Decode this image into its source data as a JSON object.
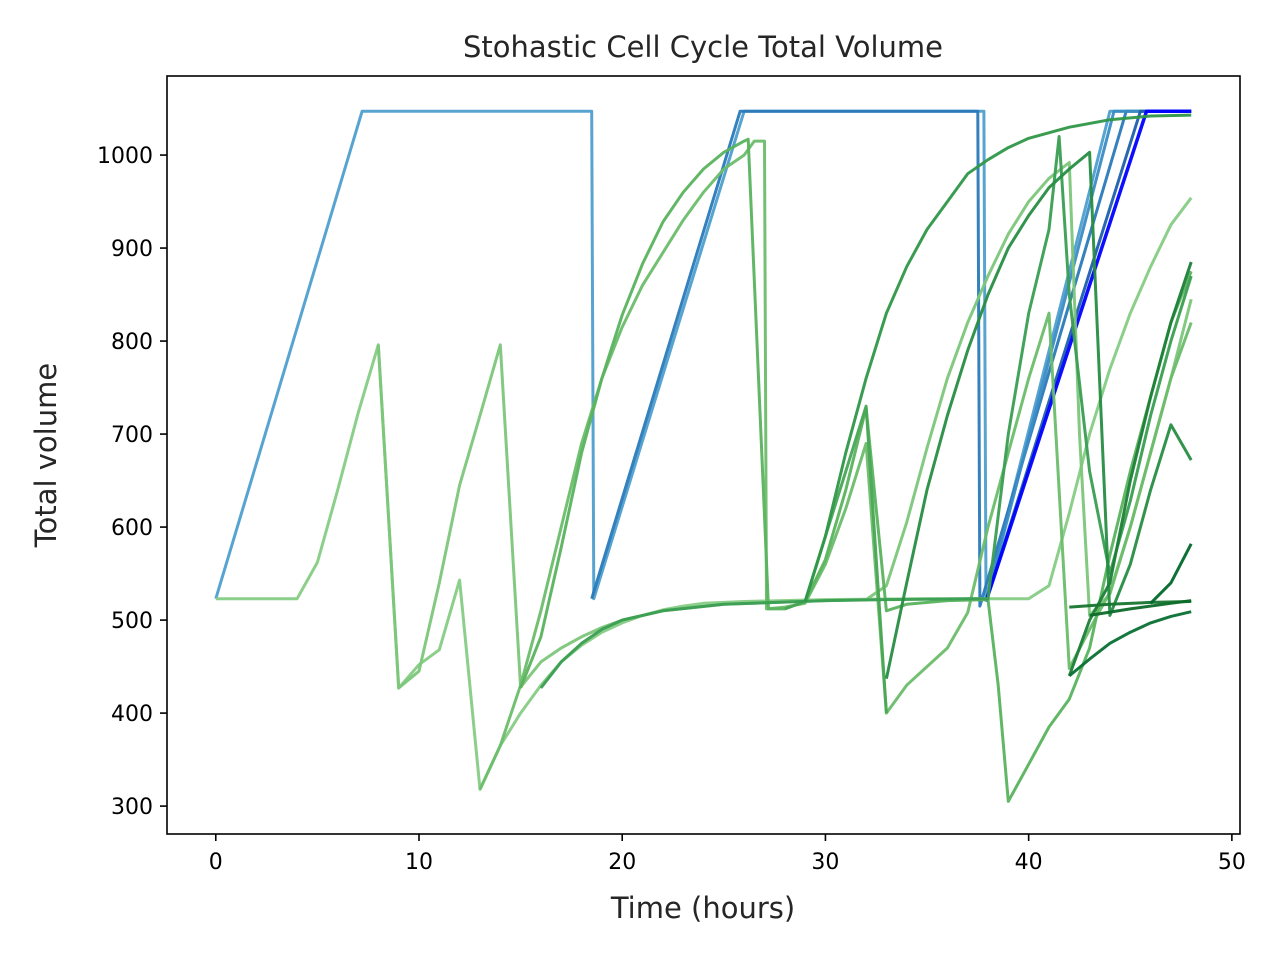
{
  "chart_data": {
    "type": "line",
    "title": "Stohastic Cell Cycle Total Volume",
    "xlabel": "Time (hours)",
    "ylabel": "Total volume",
    "xlim": [
      -2.4,
      50.4
    ],
    "ylim": [
      270,
      1085
    ],
    "xticks": [
      0,
      10,
      20,
      30,
      40,
      50
    ],
    "yticks": [
      300,
      400,
      500,
      600,
      700,
      800,
      900,
      1000
    ],
    "xtick_labels": [
      "0",
      "10",
      "20",
      "30",
      "40",
      "50"
    ],
    "ytick_labels": [
      "300",
      "400",
      "500",
      "600",
      "700",
      "800",
      "900",
      "1000"
    ],
    "grid": false,
    "legend": "none",
    "series": [
      {
        "color": "#4f9fcf",
        "width": 3,
        "points": [
          [
            0,
            523
          ],
          [
            7.2,
            1047
          ],
          [
            18.5,
            1047
          ],
          [
            18.6,
            523
          ],
          [
            26,
            1047
          ],
          [
            37.8,
            1047
          ],
          [
            37.9,
            523
          ],
          [
            44,
            1047
          ],
          [
            48,
            1047
          ]
        ]
      },
      {
        "color": "#2a7ab9",
        "width": 3,
        "points": [
          [
            18.5,
            523
          ],
          [
            25.8,
            1047
          ],
          [
            37.5,
            1047
          ],
          [
            37.6,
            515
          ],
          [
            44.8,
            1047
          ],
          [
            48,
            1047
          ]
        ]
      },
      {
        "color": "#3a8cc5",
        "width": 3,
        "points": [
          [
            37.9,
            520
          ],
          [
            44.2,
            1047
          ],
          [
            48,
            1047
          ]
        ]
      },
      {
        "color": "#1f5fad",
        "width": 3,
        "points": [
          [
            37.9,
            520
          ],
          [
            45.5,
            1047
          ],
          [
            48,
            1047
          ]
        ]
      },
      {
        "color": "#0000ff",
        "width": 3.5,
        "points": [
          [
            37.9,
            520
          ],
          [
            45.8,
            1047
          ],
          [
            48,
            1047
          ]
        ]
      },
      {
        "color": "#86cc84",
        "width": 3,
        "points": [
          [
            0,
            523
          ],
          [
            4,
            523
          ],
          [
            5,
            562
          ],
          [
            6,
            640
          ],
          [
            7,
            722
          ],
          [
            8,
            796
          ],
          [
            9,
            427
          ],
          [
            10,
            452
          ],
          [
            11,
            468
          ],
          [
            12,
            543
          ],
          [
            13,
            318
          ],
          [
            14,
            365
          ],
          [
            15,
            400
          ],
          [
            16,
            430
          ],
          [
            17,
            455
          ],
          [
            18,
            473
          ],
          [
            19,
            487
          ],
          [
            20,
            497
          ],
          [
            21,
            505
          ],
          [
            22,
            511
          ],
          [
            23,
            515
          ],
          [
            24,
            518
          ],
          [
            26,
            520
          ],
          [
            30,
            522
          ],
          [
            35,
            523
          ],
          [
            40,
            523
          ],
          [
            41,
            537
          ],
          [
            42,
            615
          ],
          [
            43,
            700
          ],
          [
            44,
            770
          ],
          [
            45,
            830
          ],
          [
            46,
            880
          ],
          [
            47,
            925
          ],
          [
            48,
            954
          ]
        ]
      },
      {
        "color": "#7cc67a",
        "width": 3,
        "points": [
          [
            8,
            796
          ],
          [
            9,
            427
          ],
          [
            10,
            445
          ],
          [
            11,
            540
          ],
          [
            12,
            645
          ],
          [
            13,
            720
          ],
          [
            14,
            796
          ],
          [
            15,
            428
          ],
          [
            16,
            455
          ],
          [
            17,
            470
          ],
          [
            18,
            482
          ],
          [
            19,
            492
          ],
          [
            20,
            500
          ],
          [
            22,
            510
          ],
          [
            25,
            517
          ],
          [
            30,
            521
          ],
          [
            32,
            522
          ],
          [
            33,
            537
          ],
          [
            34,
            605
          ],
          [
            35,
            685
          ],
          [
            36,
            760
          ],
          [
            37,
            820
          ],
          [
            38,
            870
          ],
          [
            39,
            915
          ],
          [
            40,
            950
          ],
          [
            41,
            975
          ],
          [
            42,
            992
          ],
          [
            42.5,
            700
          ],
          [
            43,
            505
          ],
          [
            44,
            528
          ],
          [
            45,
            600
          ],
          [
            46,
            680
          ],
          [
            47,
            760
          ],
          [
            48,
            845
          ]
        ]
      },
      {
        "color": "#6bbd6b",
        "width": 3,
        "points": [
          [
            13,
            318
          ],
          [
            14,
            365
          ],
          [
            15,
            430
          ],
          [
            16,
            510
          ],
          [
            17,
            600
          ],
          [
            18,
            690
          ],
          [
            19,
            760
          ],
          [
            20,
            815
          ],
          [
            21,
            860
          ],
          [
            22,
            895
          ],
          [
            23,
            930
          ],
          [
            24,
            960
          ],
          [
            25,
            985
          ],
          [
            26,
            1000
          ],
          [
            26.5,
            1015
          ],
          [
            27,
            1015
          ],
          [
            27.1,
            512
          ],
          [
            28,
            514
          ],
          [
            29,
            518
          ],
          [
            30,
            560
          ],
          [
            31,
            620
          ],
          [
            32,
            690
          ],
          [
            33,
            400
          ],
          [
            34,
            430
          ],
          [
            35,
            450
          ],
          [
            36,
            470
          ],
          [
            37,
            508
          ],
          [
            38,
            600
          ],
          [
            39,
            680
          ],
          [
            40,
            760
          ],
          [
            41,
            830
          ],
          [
            42,
            448
          ],
          [
            43,
            490
          ],
          [
            44,
            530
          ],
          [
            45,
            600
          ],
          [
            46,
            680
          ],
          [
            47,
            760
          ],
          [
            48,
            820
          ]
        ]
      },
      {
        "color": "#5ab35e",
        "width": 3,
        "points": [
          [
            15,
            427
          ],
          [
            16,
            482
          ],
          [
            17,
            578
          ],
          [
            18,
            680
          ],
          [
            19,
            760
          ],
          [
            20,
            828
          ],
          [
            21,
            883
          ],
          [
            22,
            928
          ],
          [
            23,
            960
          ],
          [
            24,
            985
          ],
          [
            25,
            1003
          ],
          [
            26,
            1015
          ],
          [
            26.2,
            1017
          ],
          [
            27.2,
            512
          ],
          [
            28,
            512
          ],
          [
            29,
            520
          ],
          [
            30,
            565
          ],
          [
            31,
            640
          ],
          [
            32,
            728
          ],
          [
            33,
            510
          ],
          [
            34,
            517
          ],
          [
            36,
            521
          ],
          [
            38,
            522
          ],
          [
            38.5,
            430
          ],
          [
            39,
            305
          ],
          [
            40,
            345
          ],
          [
            41,
            385
          ],
          [
            42,
            415
          ],
          [
            43,
            470
          ],
          [
            44,
            570
          ],
          [
            45,
            660
          ],
          [
            46,
            740
          ],
          [
            47,
            820
          ],
          [
            48,
            875
          ]
        ]
      },
      {
        "color": "#48a755",
        "width": 3,
        "points": [
          [
            28,
            512
          ],
          [
            29,
            520
          ],
          [
            30,
            590
          ],
          [
            31,
            660
          ],
          [
            32,
            730
          ],
          [
            33,
            400
          ]
        ]
      },
      {
        "color": "#3a9e52",
        "width": 3,
        "points": [
          [
            16,
            427
          ],
          [
            17,
            455
          ],
          [
            18,
            475
          ],
          [
            19,
            490
          ],
          [
            20,
            500
          ],
          [
            22,
            510
          ],
          [
            25,
            517
          ],
          [
            30,
            521
          ],
          [
            33,
            522
          ],
          [
            37,
            523
          ],
          [
            38,
            523
          ],
          [
            39,
            700
          ],
          [
            40,
            830
          ],
          [
            41,
            920
          ],
          [
            41.5,
            1020
          ],
          [
            42,
            850
          ],
          [
            43,
            660
          ],
          [
            44,
            550
          ],
          [
            45,
            628
          ],
          [
            46,
            720
          ],
          [
            47,
            800
          ],
          [
            48,
            870
          ]
        ]
      },
      {
        "color": "#2f9748",
        "width": 3,
        "points": [
          [
            29,
            520
          ],
          [
            30,
            590
          ],
          [
            31,
            680
          ],
          [
            32,
            760
          ],
          [
            33,
            830
          ],
          [
            34,
            880
          ],
          [
            35,
            920
          ],
          [
            36,
            950
          ],
          [
            37,
            980
          ],
          [
            38,
            995
          ],
          [
            39,
            1008
          ],
          [
            40,
            1018
          ],
          [
            42,
            1030
          ],
          [
            44,
            1038
          ],
          [
            46,
            1042
          ],
          [
            48,
            1043
          ]
        ]
      },
      {
        "color": "#278d43",
        "width": 3,
        "points": [
          [
            33,
            437
          ],
          [
            34,
            540
          ],
          [
            35,
            640
          ],
          [
            36,
            720
          ],
          [
            37,
            790
          ],
          [
            38,
            850
          ],
          [
            39,
            900
          ],
          [
            40,
            935
          ],
          [
            41,
            965
          ],
          [
            42,
            985
          ],
          [
            43,
            1003
          ],
          [
            44,
            505
          ],
          [
            45,
            560
          ],
          [
            46,
            640
          ],
          [
            47,
            710
          ],
          [
            48,
            672
          ]
        ]
      },
      {
        "color": "#1e8038",
        "width": 3,
        "points": [
          [
            42,
            440
          ],
          [
            43,
            500
          ],
          [
            44,
            540
          ],
          [
            45,
            650
          ],
          [
            46,
            740
          ],
          [
            47,
            820
          ],
          [
            48,
            885
          ]
        ]
      },
      {
        "color": "#17752f",
        "width": 3,
        "points": [
          [
            42,
            514
          ],
          [
            44,
            517
          ],
          [
            46,
            519
          ],
          [
            48,
            520
          ]
        ]
      },
      {
        "color": "#0d6a29",
        "width": 3,
        "points": [
          [
            43,
            505
          ],
          [
            45,
            512
          ],
          [
            47,
            518
          ],
          [
            48,
            521
          ]
        ]
      },
      {
        "color": "#087033",
        "width": 3,
        "points": [
          [
            42,
            440
          ],
          [
            43,
            458
          ],
          [
            44,
            475
          ],
          [
            45,
            487
          ],
          [
            46,
            497
          ],
          [
            47,
            504
          ],
          [
            48,
            509
          ]
        ]
      },
      {
        "color": "#00682a",
        "width": 3,
        "points": [
          [
            46,
            518
          ],
          [
            47,
            540
          ],
          [
            48,
            582
          ]
        ]
      }
    ]
  }
}
